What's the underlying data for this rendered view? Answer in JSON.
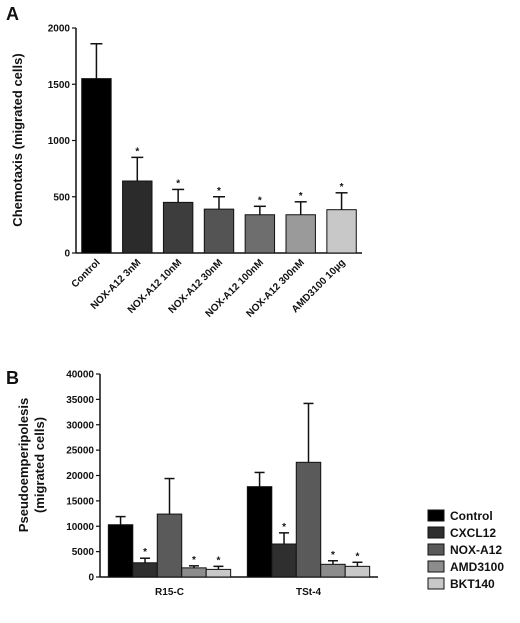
{
  "chart_data": [
    {
      "type": "bar",
      "panel_label": "A",
      "title": "",
      "xlabel": "",
      "ylabel": "Chemotaxis (migrated cells)",
      "ylim": [
        0,
        2000
      ],
      "yticks": [
        0,
        500,
        1000,
        1500,
        2000
      ],
      "grid": false,
      "categories": [
        "Control",
        "NOX-A12 3nM",
        "NOX-A12 10nM",
        "NOX-A12 30nM",
        "NOX-A12 100nM",
        "NOX-A12 300nM",
        "AMD3100 10µg"
      ],
      "values": [
        1550,
        640,
        450,
        390,
        340,
        340,
        385
      ],
      "errors": [
        310,
        210,
        115,
        110,
        75,
        115,
        150
      ],
      "significance": [
        "",
        "*",
        "*",
        "*",
        "*",
        "*",
        "*"
      ],
      "colors": [
        "#000000",
        "#2b2b2b",
        "#3d3d3d",
        "#545454",
        "#6e6e6e",
        "#9a9a9a",
        "#c8c8c8"
      ]
    },
    {
      "type": "bar",
      "panel_label": "B",
      "title": "",
      "xlabel": "",
      "ylabel_lines": [
        "Pseudoemperipolesis",
        "(migrated cells)"
      ],
      "ylim": [
        0,
        40000
      ],
      "yticks": [
        0,
        5000,
        10000,
        15000,
        20000,
        25000,
        30000,
        35000,
        40000
      ],
      "grid": false,
      "legend_position": "right",
      "categories": [
        "R15-C",
        "TSt-4"
      ],
      "series": [
        {
          "name": "Control",
          "values": [
            10300,
            17800
          ],
          "errors": [
            1600,
            2800
          ],
          "significance": [
            "",
            ""
          ],
          "color": "#000000"
        },
        {
          "name": "CXCL12",
          "values": [
            2800,
            6500
          ],
          "errors": [
            900,
            2200
          ],
          "significance": [
            "*",
            "*"
          ],
          "color": "#2f2f2f"
        },
        {
          "name": "NOX-A12",
          "values": [
            12400,
            22600
          ],
          "errors": [
            7000,
            11600
          ],
          "significance": [
            "",
            ""
          ],
          "color": "#5a5a5a"
        },
        {
          "name": "AMD3100",
          "values": [
            1800,
            2500
          ],
          "errors": [
            400,
            700
          ],
          "significance": [
            "*",
            "*"
          ],
          "color": "#8c8c8c"
        },
        {
          "name": "BKT140",
          "values": [
            1500,
            2100
          ],
          "errors": [
            600,
            800
          ],
          "significance": [
            "*",
            "*"
          ],
          "color": "#c8c8c8"
        }
      ]
    }
  ]
}
